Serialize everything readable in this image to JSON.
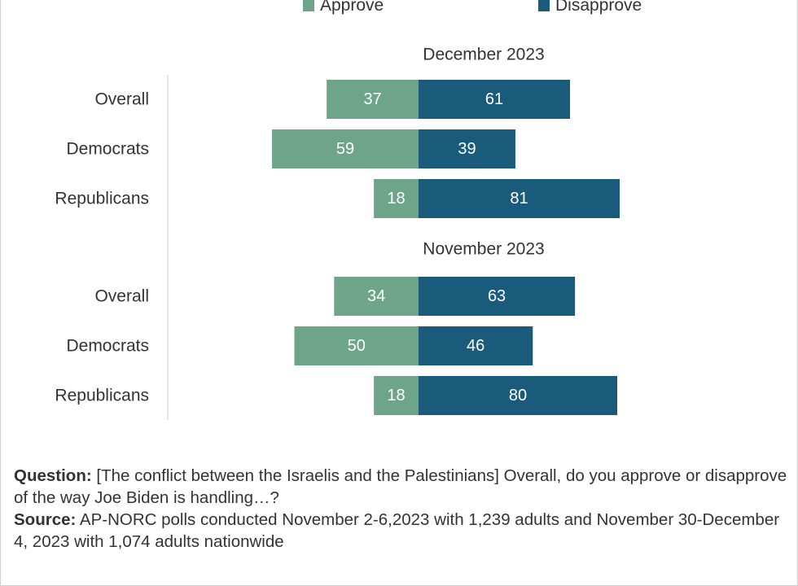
{
  "colors": {
    "approve": "#6ea58a",
    "disapprove": "#1a5b7c",
    "bar_label": "#ffffff",
    "axis": "#cccccc"
  },
  "legend": {
    "approve": "Approve",
    "disapprove": "Disapprove"
  },
  "notes": {
    "question_label": "Question:",
    "question_text": " [The conflict between the Israelis and the Palestinians] Overall, do you approve or disapprove of the way Joe Biden is handling…?",
    "source_label": "Source:",
    "source_text": " AP-NORC polls conducted November 2-6,2023 with 1,239 adults and November 30-December 4, 2023 with 1,074 adults nationwide"
  },
  "chart_data": {
    "type": "bar",
    "orientation": "horizontal-diverging",
    "series": [
      {
        "name": "Approve",
        "direction": "left"
      },
      {
        "name": "Disapprove",
        "direction": "right"
      }
    ],
    "groups": [
      {
        "title": "December 2023",
        "categories": [
          "Overall",
          "Democrats",
          "Republicans"
        ],
        "approve": [
          37,
          59,
          18
        ],
        "disapprove": [
          61,
          39,
          81
        ]
      },
      {
        "title": "November 2023",
        "categories": [
          "Overall",
          "Democrats",
          "Republicans"
        ],
        "approve": [
          34,
          50,
          18
        ],
        "disapprove": [
          63,
          46,
          80
        ]
      }
    ]
  }
}
